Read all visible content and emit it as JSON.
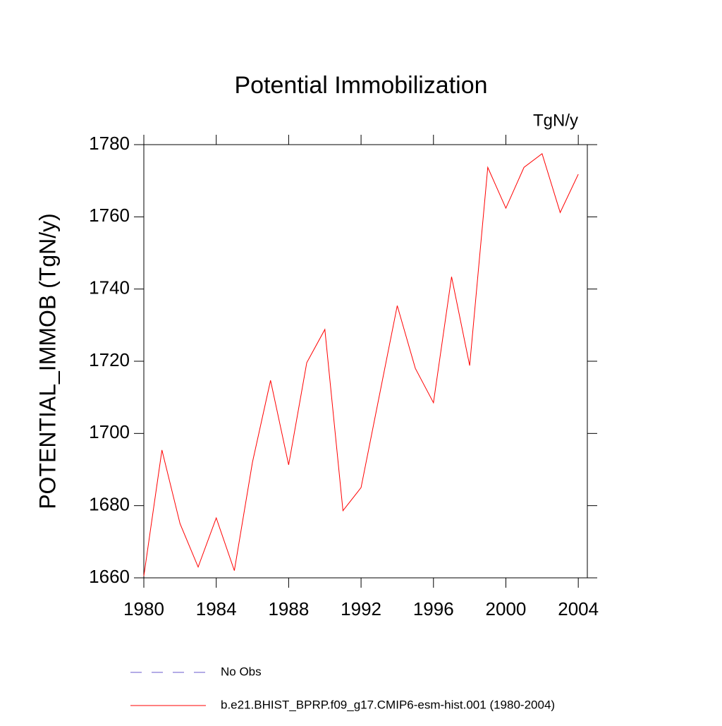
{
  "chart_data": {
    "type": "line",
    "title": "Potential Immobilization",
    "units_label": "TgN/y",
    "y_label": "POTENTIAL_IMMOB  (TgN/y)",
    "x": [
      1980,
      1981,
      1982,
      1983,
      1984,
      1985,
      1986,
      1987,
      1988,
      1989,
      1990,
      1991,
      1992,
      1993,
      1994,
      1995,
      1996,
      1997,
      1998,
      1999,
      2000,
      2001,
      2002,
      2003,
      2004
    ],
    "series": [
      {
        "name": "No Obs",
        "color": "#6a5acd",
        "dashed": true,
        "values": [
          null,
          null,
          null,
          null,
          null,
          null,
          null,
          null,
          null,
          null,
          null,
          null,
          null,
          null,
          null,
          null,
          null,
          null,
          null,
          null,
          null,
          null,
          null,
          null,
          null
        ]
      },
      {
        "name": "b.e21.BHIST_BPRP.f09_g17.CMIP6-esm-hist.001 (1980-2004)",
        "color": "#ff0000",
        "dashed": false,
        "values": [
          1660.5,
          1695.4,
          1675,
          1663,
          1676.6,
          1662,
          1692,
          1714.7,
          1691.3,
          1719.6,
          1728.8,
          1678.6,
          1685,
          1710.2,
          1735.4,
          1718,
          1708.5,
          1743.4,
          1718.8,
          1773.7,
          1762.4,
          1773.7,
          1777.5,
          1761.2,
          1771.8
        ]
      }
    ],
    "xlim": [
      1980,
      2004.5
    ],
    "xticks": [
      1980,
      1984,
      1988,
      1992,
      1996,
      2000,
      2004
    ],
    "ylim": [
      1660,
      1780
    ],
    "yticks": [
      1660,
      1680,
      1700,
      1720,
      1740,
      1760,
      1780
    ]
  }
}
